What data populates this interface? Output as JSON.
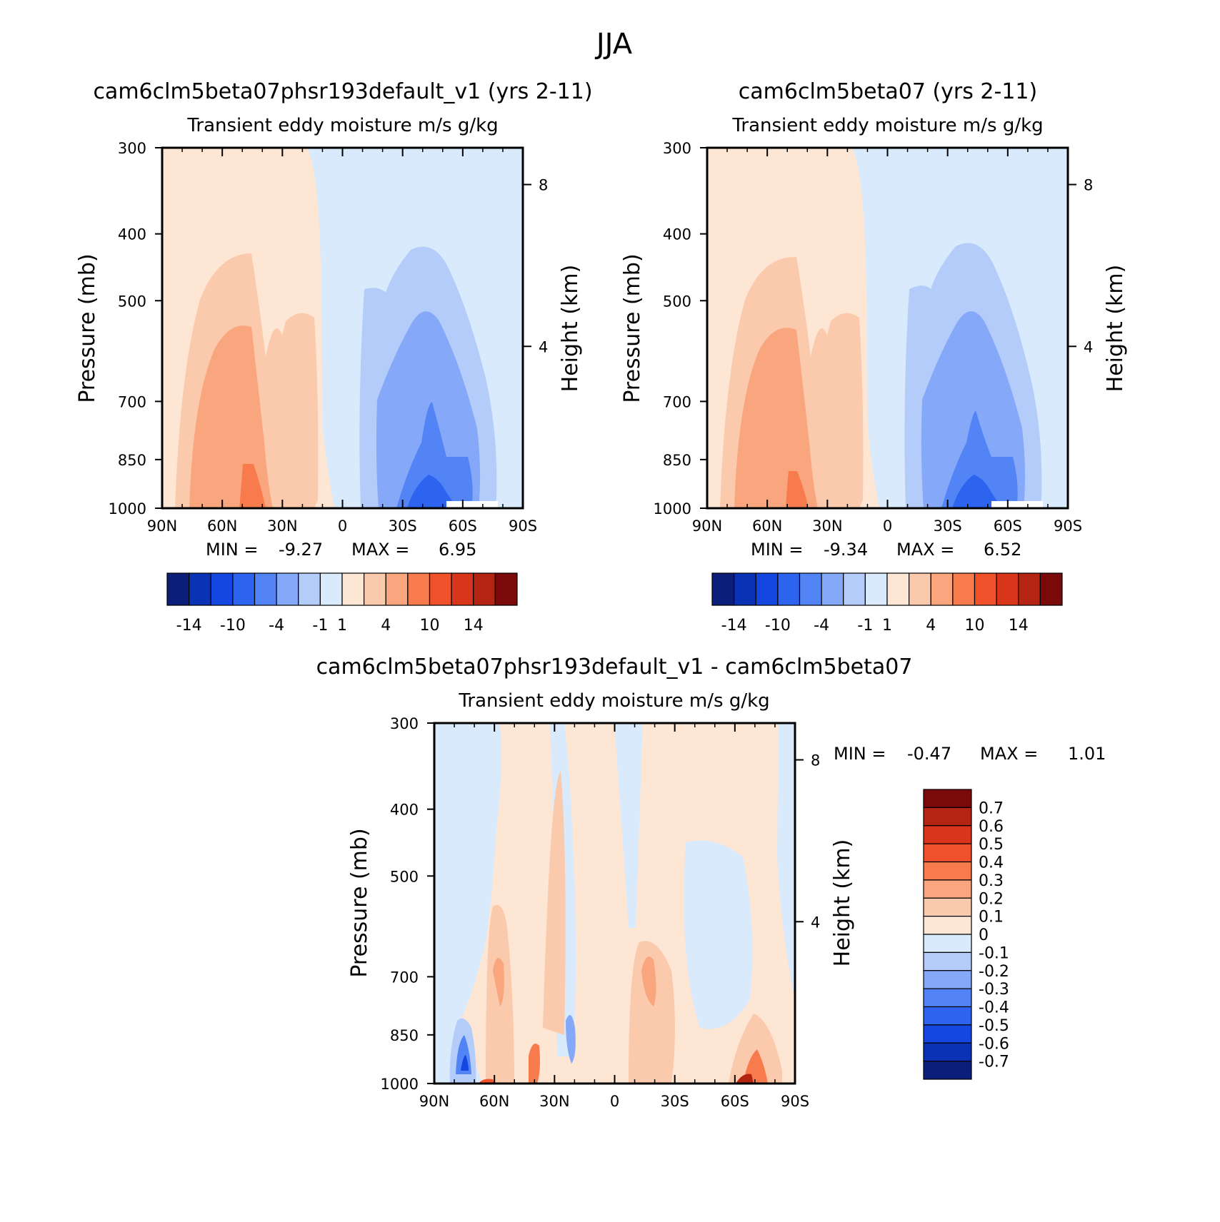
{
  "title": "JJA",
  "chart_data": [
    {
      "type": "heatmap",
      "id": "p1",
      "title": "cam6clm5beta07phsr193default_v1 (yrs 2-11)",
      "subtitle": "Transient  eddy  moisture m/s  g/kg",
      "ylabel": "Pressure  (mb)",
      "ylabel_right": "Height  (km)",
      "x_ticks": [
        "90N",
        "60N",
        "30N",
        "0",
        "30S",
        "60S",
        "90S"
      ],
      "y_ticks": [
        "300",
        "400",
        "500",
        "700",
        "850",
        "1000"
      ],
      "y_ticks_right": [
        "8",
        "4"
      ],
      "stats": {
        "min_label": "MIN =",
        "min": "-9.27",
        "max_label": "MAX =",
        "max": "6.95"
      },
      "colorbar_labels": [
        "-14",
        "-10",
        "-4",
        "-1",
        "1",
        "4",
        "10",
        "14"
      ],
      "colorbar_colors": [
        "#0b1f7a",
        "#0a32b4",
        "#1446e0",
        "#2c64f0",
        "#5284f5",
        "#86a8f8",
        "#b3ccfa",
        "#d9eafc",
        "#fde6d4",
        "#fbc9ab",
        "#f9a57e",
        "#f77b4c",
        "#f0502a",
        "#d8351a",
        "#b42412",
        "#7a0a0a"
      ]
    },
    {
      "type": "heatmap",
      "id": "p2",
      "title": "cam6clm5beta07 (yrs 2-11)",
      "subtitle": "Transient  eddy  moisture m/s  g/kg",
      "ylabel": "Pressure  (mb)",
      "ylabel_right": "Height  (km)",
      "x_ticks": [
        "90N",
        "60N",
        "30N",
        "0",
        "30S",
        "60S",
        "90S"
      ],
      "y_ticks": [
        "300",
        "400",
        "500",
        "700",
        "850",
        "1000"
      ],
      "y_ticks_right": [
        "8",
        "4"
      ],
      "stats": {
        "min_label": "MIN =",
        "min": "-9.34",
        "max_label": "MAX =",
        "max": "6.52"
      },
      "colorbar_labels": [
        "-14",
        "-10",
        "-4",
        "-1",
        "1",
        "4",
        "10",
        "14"
      ],
      "colorbar_colors": [
        "#0b1f7a",
        "#0a32b4",
        "#1446e0",
        "#2c64f0",
        "#5284f5",
        "#86a8f8",
        "#b3ccfa",
        "#d9eafc",
        "#fde6d4",
        "#fbc9ab",
        "#f9a57e",
        "#f77b4c",
        "#f0502a",
        "#d8351a",
        "#b42412",
        "#7a0a0a"
      ]
    },
    {
      "type": "heatmap",
      "id": "p3",
      "title": "cam6clm5beta07phsr193default_v1  -  cam6clm5beta07",
      "subtitle": "Transient  eddy  moisture m/s  g/kg",
      "ylabel": "Pressure  (mb)",
      "ylabel_right": "Height  (km)",
      "x_ticks": [
        "90N",
        "60N",
        "30N",
        "0",
        "30S",
        "60S",
        "90S"
      ],
      "y_ticks": [
        "300",
        "400",
        "500",
        "700",
        "850",
        "1000"
      ],
      "y_ticks_right": [
        "8",
        "4"
      ],
      "stats": {
        "min_label": "MIN =",
        "min": "-0.47",
        "max_label": "MAX =",
        "max": "1.01"
      },
      "colorbar_labels": [
        "0.7",
        "0.6",
        "0.5",
        "0.4",
        "0.3",
        "0.2",
        "0.1",
        "0",
        "-0.1",
        "-0.2",
        "-0.3",
        "-0.4",
        "-0.5",
        "-0.6",
        "-0.7"
      ],
      "colorbar_colors": [
        "#7a0a0a",
        "#b42412",
        "#d8351a",
        "#f0502a",
        "#f77b4c",
        "#f9a57e",
        "#fbc9ab",
        "#fde6d4",
        "#d9eafc",
        "#b3ccfa",
        "#86a8f8",
        "#5284f5",
        "#2c64f0",
        "#1446e0",
        "#0a32b4",
        "#0b1f7a"
      ]
    }
  ]
}
